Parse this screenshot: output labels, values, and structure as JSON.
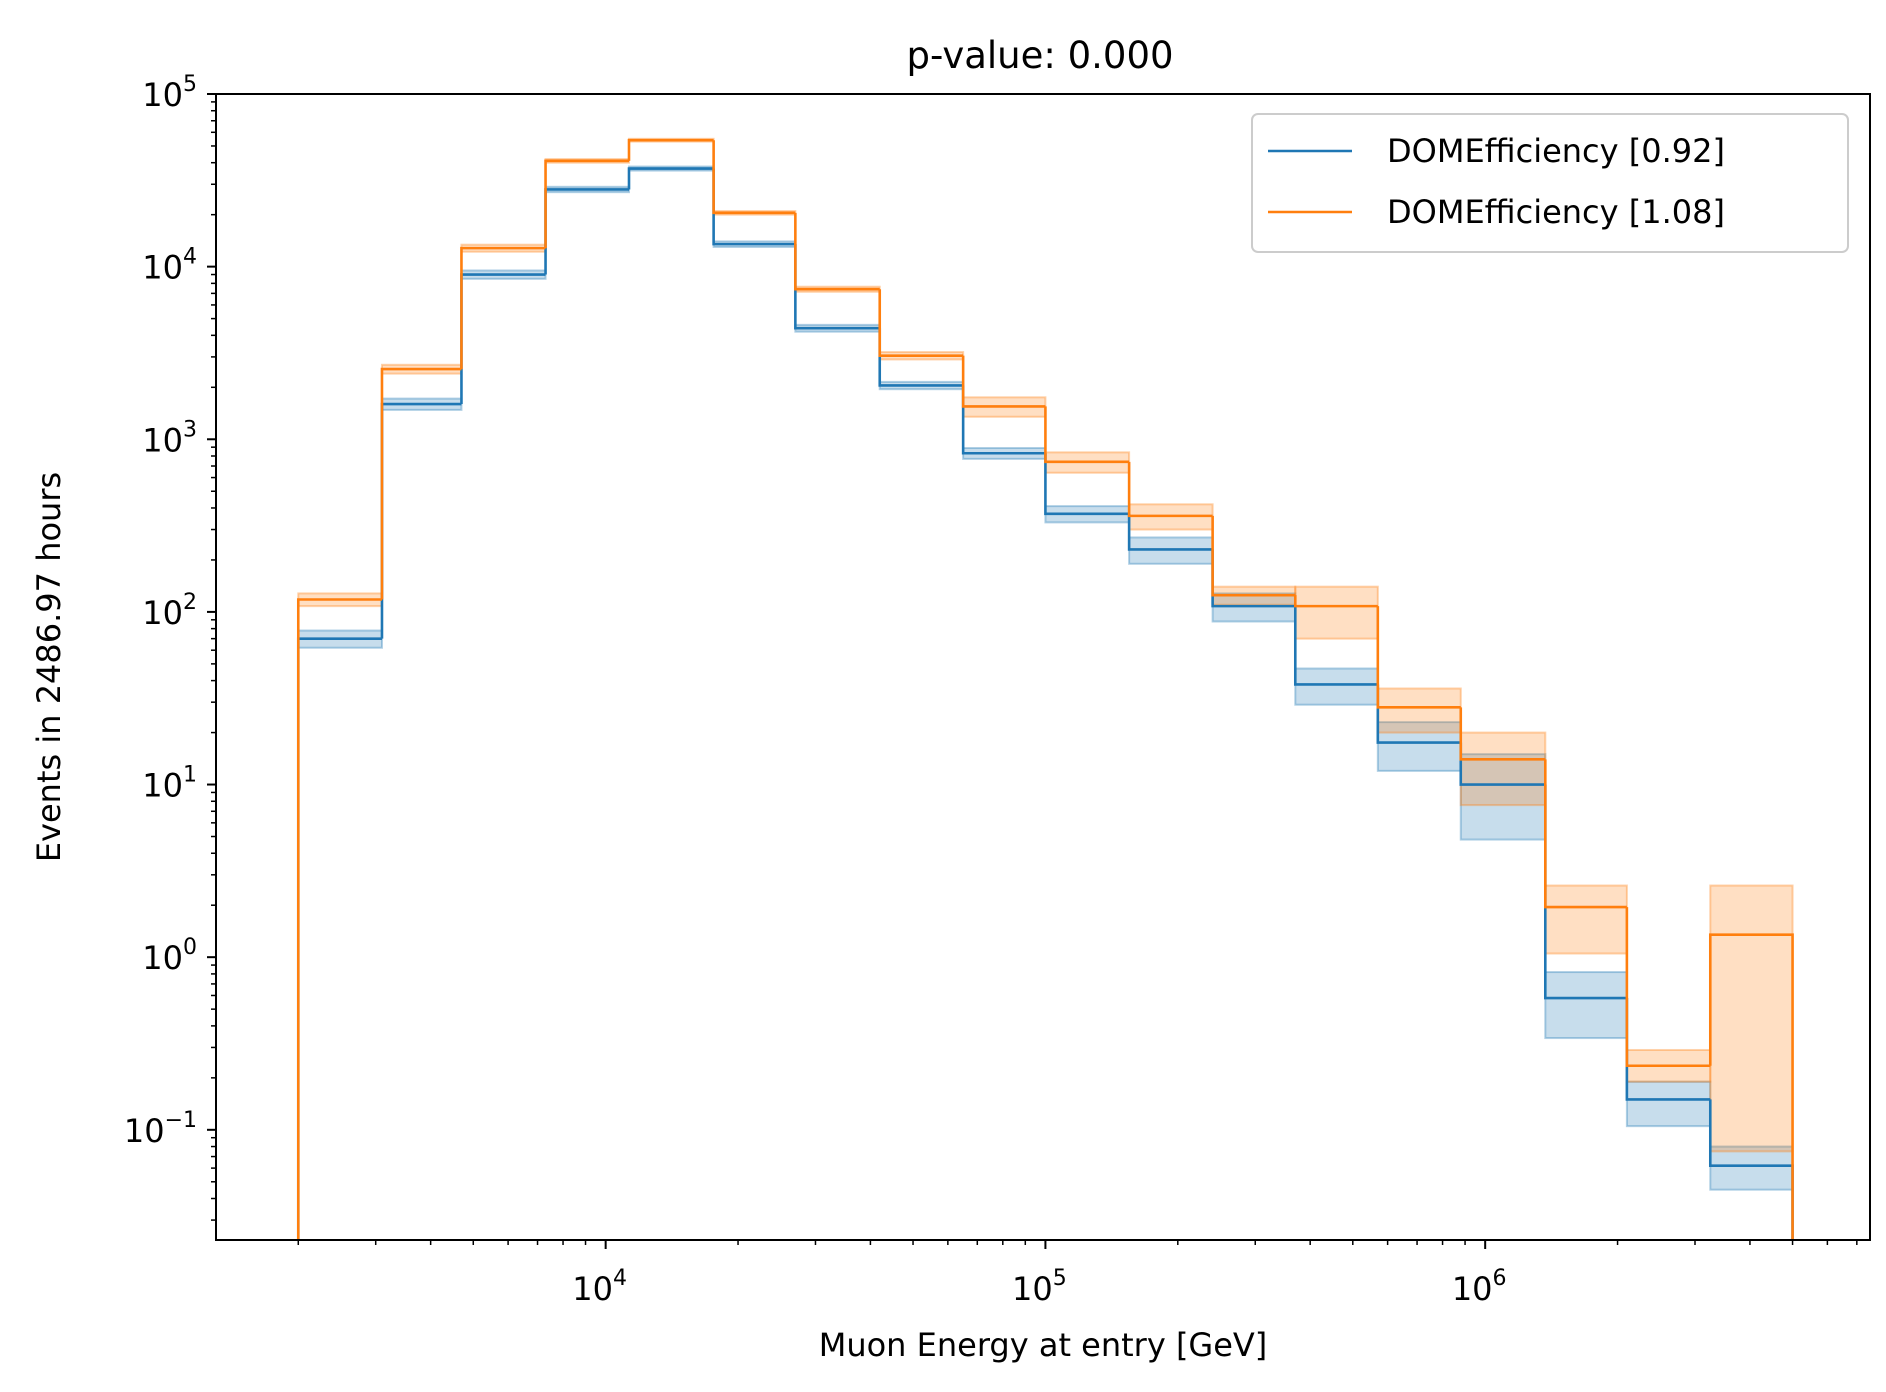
{
  "chart_data": {
    "type": "line",
    "step": true,
    "title": "p-value: 0.000",
    "xlabel": "Muon Energy at entry [GeV]",
    "ylabel": "Events in 2486.97 hours",
    "xscale": "log",
    "yscale": "log",
    "xlim": [
      1300,
      7500000
    ],
    "ylim": [
      0.023,
      100000
    ],
    "x_ticks": [
      {
        "value": 10000,
        "base": "10",
        "exp": "4"
      },
      {
        "value": 100000,
        "base": "10",
        "exp": "5"
      },
      {
        "value": 1000000,
        "base": "10",
        "exp": "6"
      }
    ],
    "y_ticks": [
      {
        "value": 0.1,
        "base": "10",
        "exp": "−1"
      },
      {
        "value": 1,
        "base": "10",
        "exp": "0"
      },
      {
        "value": 10,
        "base": "10",
        "exp": "1"
      },
      {
        "value": 100,
        "base": "10",
        "exp": "2"
      },
      {
        "value": 1000,
        "base": "10",
        "exp": "3"
      },
      {
        "value": 10000,
        "base": "10",
        "exp": "4"
      },
      {
        "value": 100000,
        "base": "10",
        "exp": "5"
      }
    ],
    "bin_edges": [
      2000,
      3100,
      4700,
      7300,
      11300,
      17600,
      27000,
      42000,
      65000,
      100000,
      155000,
      240000,
      370000,
      570000,
      880000,
      1370000,
      2100000,
      3250000,
      5000000
    ],
    "legend_position": "upper right",
    "grid": false,
    "series": [
      {
        "name": "DOMEfficiency [0.92]",
        "color": "#1f77b4",
        "values": [
          70,
          1600,
          9000,
          28000,
          37000,
          13500,
          4400,
          2050,
          830,
          370,
          230,
          108,
          38,
          17.5,
          10,
          0.58,
          0.15,
          0.062
        ],
        "band_low": [
          62,
          1480,
          8500,
          27000,
          36000,
          13000,
          4200,
          1950,
          770,
          330,
          190,
          88,
          29,
          12,
          4.8,
          0.34,
          0.105,
          0.045
        ],
        "band_high": [
          78,
          1720,
          9500,
          29000,
          38000,
          14000,
          4600,
          2150,
          890,
          410,
          270,
          128,
          47,
          23,
          15,
          0.82,
          0.19,
          0.08
        ]
      },
      {
        "name": "DOMEfficiency [1.08]",
        "color": "#ff7f0e",
        "values": [
          118,
          2550,
          12800,
          41000,
          54000,
          20500,
          7400,
          3050,
          1550,
          740,
          360,
          125,
          108,
          28,
          14,
          1.95,
          0.235,
          1.35
        ],
        "band_low": [
          108,
          2400,
          12200,
          40000,
          53000,
          20000,
          7150,
          2900,
          1350,
          640,
          300,
          110,
          70,
          20,
          7.6,
          1.05,
          0.19,
          0.075
        ],
        "band_high": [
          128,
          2700,
          13400,
          42000,
          55000,
          21000,
          7650,
          3200,
          1750,
          840,
          420,
          140,
          140,
          36,
          20,
          2.6,
          0.29,
          2.6
        ]
      }
    ]
  }
}
